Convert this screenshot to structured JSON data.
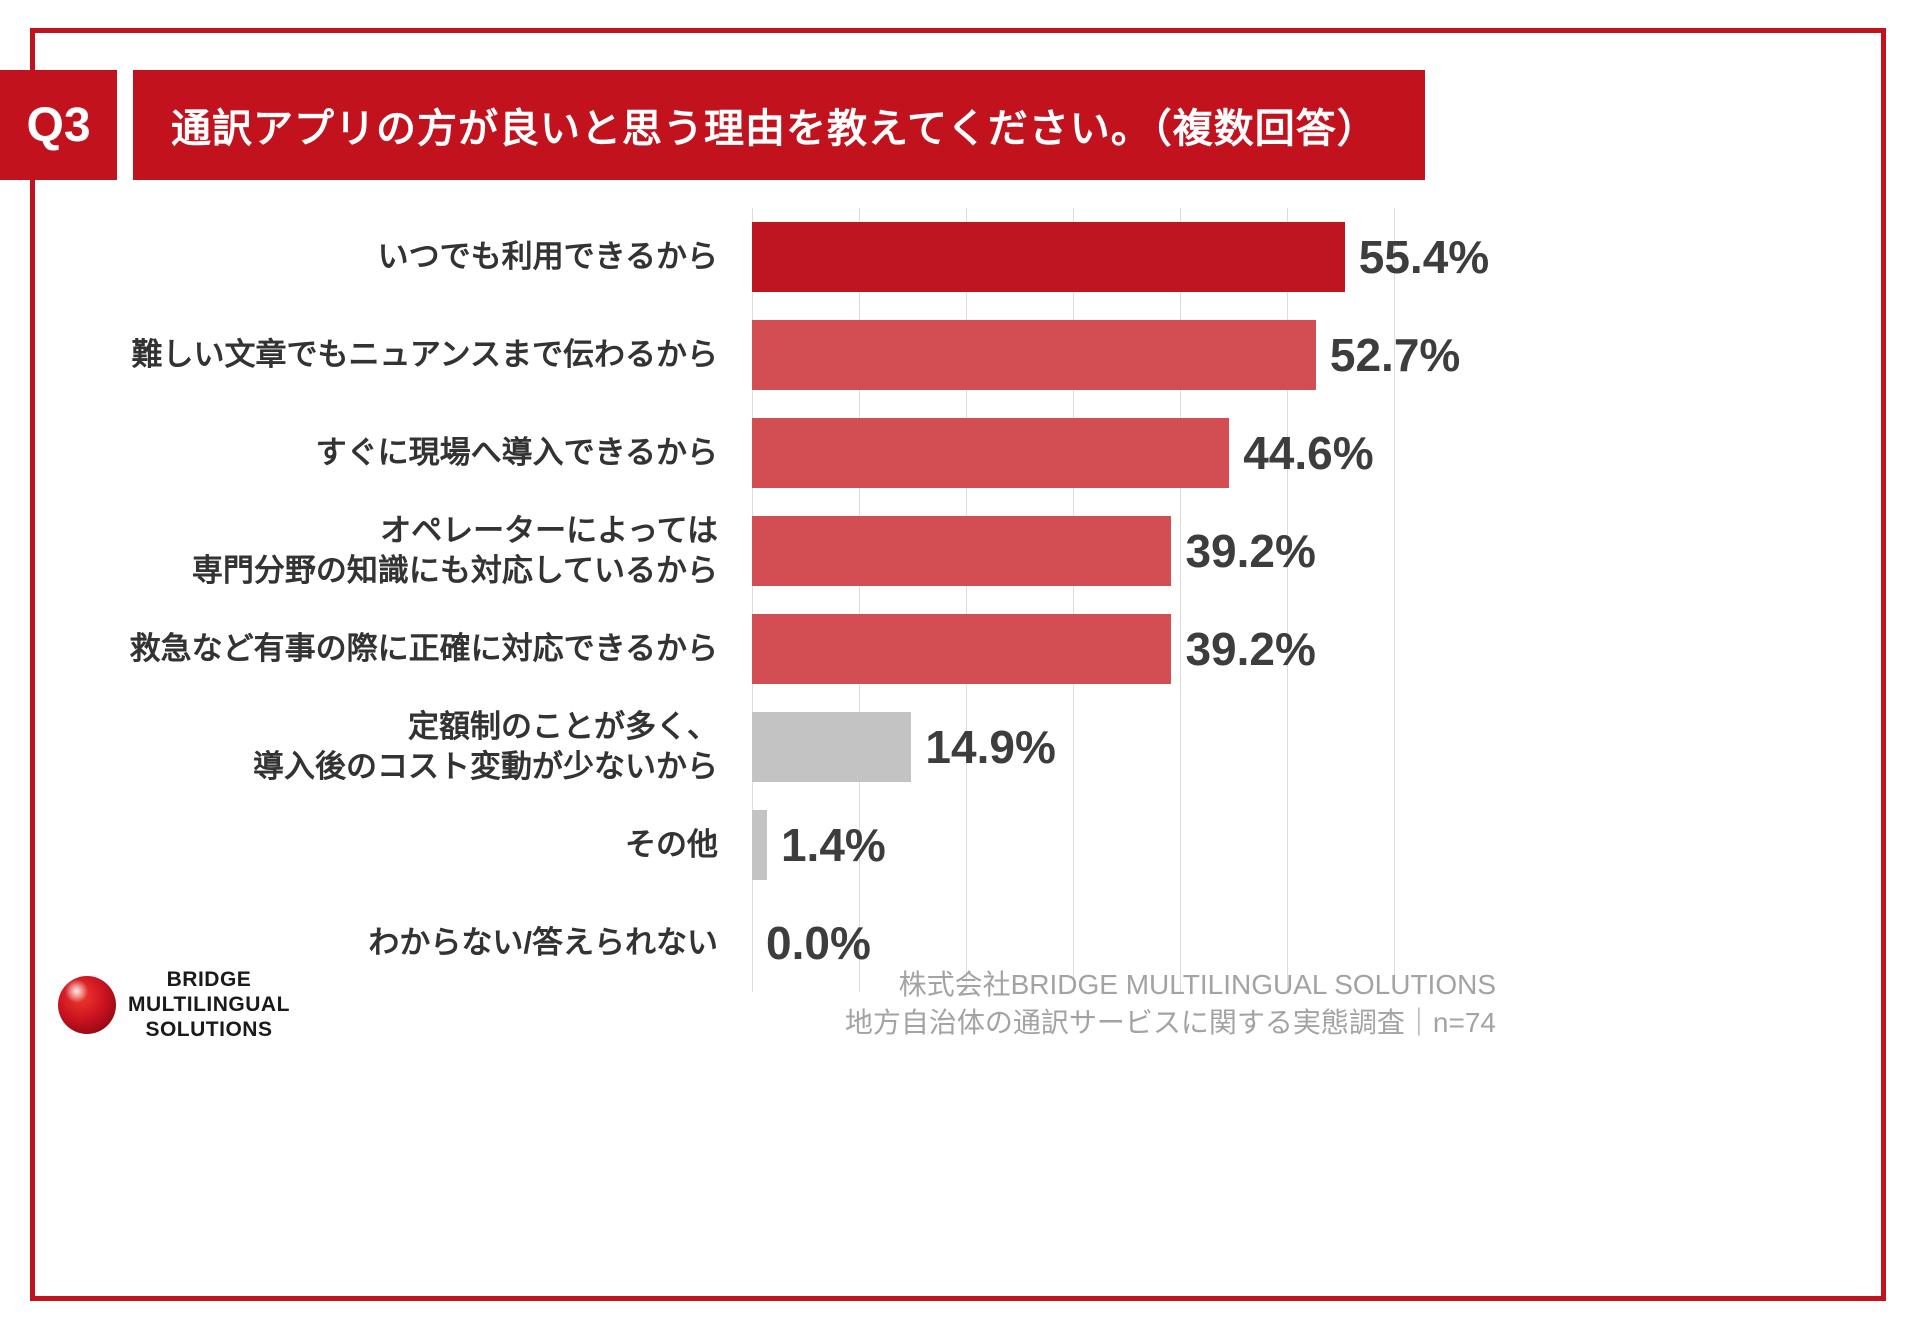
{
  "page": {
    "q_label": "Q3",
    "title": "通訳アプリの方が良いと思う理由を教えてください。（複数回答）"
  },
  "chart_data": {
    "type": "bar",
    "orientation": "horizontal",
    "title": "通訳アプリの方が良いと思う理由を教えてください。（複数回答）",
    "categories": [
      "いつでも利用できるから",
      "難しい文章でもニュアンスまで伝わるから",
      "すぐに現場へ導入できるから",
      "オペレーターによっては\n専門分野の知識にも対応しているから",
      "救急など有事の際に正確に対応できるから",
      "定額制のことが多く、\n導入後のコスト変動が少ないから",
      "その他",
      "わからない/答えられない"
    ],
    "values": [
      55.4,
      52.7,
      44.6,
      39.2,
      39.2,
      14.9,
      1.4,
      0.0
    ],
    "value_labels": [
      "55.4%",
      "52.7%",
      "44.6%",
      "39.2%",
      "39.2%",
      "14.9%",
      "1.4%",
      "0.0%"
    ],
    "bar_colors": [
      "#bf1520",
      "#d24e52",
      "#d24e52",
      "#d24e52",
      "#d24e52",
      "#c3c3c3",
      "#c3c3c3",
      "#c3c3c3"
    ],
    "xlim": [
      0,
      60
    ],
    "gridline_interval": 10,
    "grid": true,
    "legend": false,
    "xlabel": "",
    "ylabel": ""
  },
  "footer": {
    "logo_lines": [
      "BRIDGE",
      "MULTILINGUAL",
      "SOLUTIONS"
    ],
    "source_line1": "株式会社BRIDGE MULTILINGUAL SOLUTIONS",
    "source_line2": "地方自治体の通訳サービスに関する実態調査｜n=74"
  },
  "colors": {
    "accent_red": "#c2121d",
    "bar_red_dark": "#bf1520",
    "bar_red": "#d24e52",
    "bar_gray": "#c3c3c3",
    "gridline": "#dcdcdc"
  }
}
